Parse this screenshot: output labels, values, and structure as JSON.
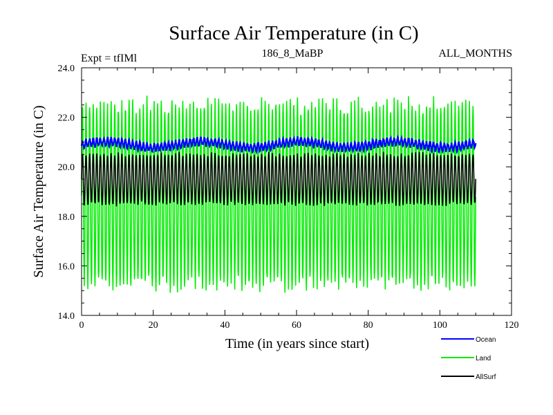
{
  "chart_data": {
    "type": "line",
    "title": "Surface Air Temperature (in C)",
    "subtitle_left": "Expt = tfIMl",
    "subtitle_center": "186_8_MaBP",
    "subtitle_right": "ALL_MONTHS",
    "xlabel": "Time (in years since start)",
    "ylabel": "Surface Air Temperature (in C)",
    "xlim": [
      0,
      120
    ],
    "ylim": [
      14.0,
      24.0
    ],
    "xticks": [
      0,
      20,
      40,
      60,
      80,
      100,
      120
    ],
    "yticks": [
      "14.0",
      "16.0",
      "18.0",
      "20.0",
      "22.0",
      "24.0"
    ],
    "grid": false,
    "legend_position": "bottom-right",
    "x_range_of_data": [
      0,
      110
    ],
    "samples_per_year": 12,
    "series": [
      {
        "name": "Ocean",
        "color": "#0000ff",
        "seasonal_mean": 20.9,
        "seasonal_amplitude": 0.15,
        "typical_range": [
          20.5,
          21.3
        ]
      },
      {
        "name": "Land",
        "color": "#00ee00",
        "seasonal_mean": 18.9,
        "seasonal_amplitude": 3.6,
        "typical_range": [
          15.0,
          22.7
        ],
        "observed_max": 23.0,
        "observed_min": 14.5
      },
      {
        "name": "AllSurf",
        "color": "#000000",
        "seasonal_mean": 19.5,
        "seasonal_amplitude": 1.0,
        "typical_range": [
          18.5,
          20.5
        ]
      }
    ]
  }
}
